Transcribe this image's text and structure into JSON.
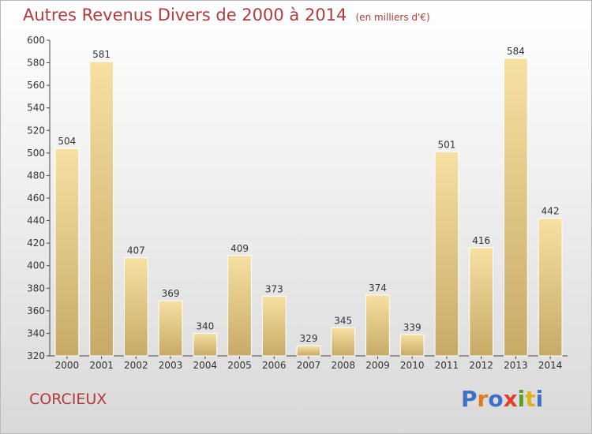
{
  "title": "Autres Revenus Divers de 2000 à 2014",
  "title_unit": "(en milliers d'€)",
  "location": "CORCIEUX",
  "logo_text": "Proxiti",
  "colors": {
    "title": "#b23a3a",
    "bar_light": "#f6e0a2",
    "bar_dark": "#c7aa66",
    "axis": "#444444",
    "logo": [
      "#3f6fc7",
      "#e07a1a",
      "#3f6fc7",
      "#e0402a",
      "#5aa02c",
      "#e0b020",
      "#3f6fc7"
    ]
  },
  "chart_data": {
    "type": "bar",
    "title": "Autres Revenus Divers de 2000 à 2014",
    "categories": [
      "2000",
      "2001",
      "2002",
      "2003",
      "2004",
      "2005",
      "2006",
      "2007",
      "2008",
      "2009",
      "2010",
      "2011",
      "2012",
      "2013",
      "2014"
    ],
    "values": [
      504,
      581,
      407,
      369,
      340,
      409,
      373,
      329,
      345,
      374,
      339,
      501,
      416,
      584,
      442
    ],
    "ylim": [
      320,
      600
    ],
    "yticks": [
      320,
      340,
      360,
      380,
      400,
      420,
      440,
      460,
      480,
      500,
      520,
      540,
      560,
      580,
      600
    ],
    "grid": false,
    "data_labels": true
  }
}
